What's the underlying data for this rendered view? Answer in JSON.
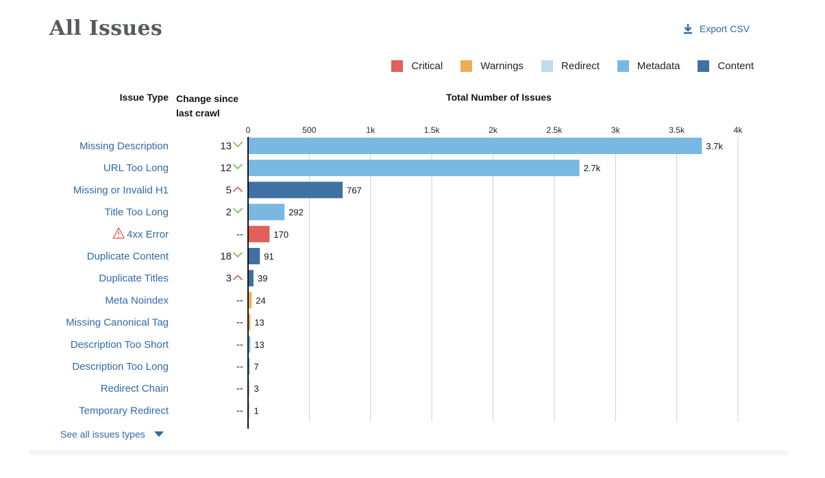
{
  "page": {
    "title": "All Issues",
    "export_label": "Export CSV",
    "export_icon": "download-icon",
    "see_all_label": "See all issues types",
    "see_all_icon": "caret-down-icon"
  },
  "legend": [
    {
      "label": "Critical",
      "color": "#e0605a"
    },
    {
      "label": "Warnings",
      "color": "#efab53"
    },
    {
      "label": "Redirect",
      "color": "#bddcee"
    },
    {
      "label": "Metadata",
      "color": "#7ab8e4"
    },
    {
      "label": "Content",
      "color": "#3f71a3"
    }
  ],
  "headers": {
    "issue_type": "Issue Type",
    "change": "Change since last crawl",
    "total": "Total Number of Issues"
  },
  "chart_data": {
    "type": "bar",
    "orientation": "horizontal",
    "title": "",
    "xlabel": "Total Number of Issues",
    "ylabel": "Issue Type",
    "xlim": [
      0,
      4000
    ],
    "x_ticks": [
      "0",
      "500",
      "1k",
      "1.5k",
      "2k",
      "2.5k",
      "3k",
      "3.5k",
      "4k"
    ],
    "grid": true,
    "legend_position": "top-right",
    "rows": [
      {
        "label": "Missing Description",
        "value": 3700,
        "value_label": "3.7k",
        "category": "Metadata",
        "change": "13",
        "trend": "down",
        "warning_icon": false
      },
      {
        "label": "URL Too Long",
        "value": 2700,
        "value_label": "2.7k",
        "category": "Metadata",
        "change": "12",
        "trend": "down",
        "warning_icon": false
      },
      {
        "label": "Missing or Invalid H1",
        "value": 767,
        "value_label": "767",
        "category": "Content",
        "change": "5",
        "trend": "up",
        "warning_icon": false
      },
      {
        "label": "Title Too Long",
        "value": 292,
        "value_label": "292",
        "category": "Metadata",
        "change": "2",
        "trend": "down",
        "warning_icon": false
      },
      {
        "label": "4xx Error",
        "value": 170,
        "value_label": "170",
        "category": "Critical",
        "change": "--",
        "trend": "",
        "warning_icon": true
      },
      {
        "label": "Duplicate Content",
        "value": 91,
        "value_label": "91",
        "category": "Content",
        "change": "18",
        "trend": "down",
        "warning_icon": false
      },
      {
        "label": "Duplicate Titles",
        "value": 39,
        "value_label": "39",
        "category": "Content",
        "change": "3",
        "trend": "up",
        "warning_icon": false
      },
      {
        "label": "Meta Noindex",
        "value": 24,
        "value_label": "24",
        "category": "Warnings",
        "change": "--",
        "trend": "",
        "warning_icon": false
      },
      {
        "label": "Missing Canonical Tag",
        "value": 13,
        "value_label": "13",
        "category": "Warnings",
        "change": "--",
        "trend": "",
        "warning_icon": false
      },
      {
        "label": "Description Too Short",
        "value": 13,
        "value_label": "13",
        "category": "Metadata",
        "change": "--",
        "trend": "",
        "warning_icon": false
      },
      {
        "label": "Description Too Long",
        "value": 7,
        "value_label": "7",
        "category": "Metadata",
        "change": "--",
        "trend": "",
        "warning_icon": false
      },
      {
        "label": "Redirect Chain",
        "value": 3,
        "value_label": "3",
        "category": "Redirect",
        "change": "--",
        "trend": "",
        "warning_icon": false
      },
      {
        "label": "Temporary Redirect",
        "value": 1,
        "value_label": "1",
        "category": "Redirect",
        "change": "--",
        "trend": "",
        "warning_icon": false
      }
    ],
    "trend_colors": {
      "up": "#e0605a",
      "down": "#7cc35a"
    },
    "link_color": "#2f6aa8"
  }
}
